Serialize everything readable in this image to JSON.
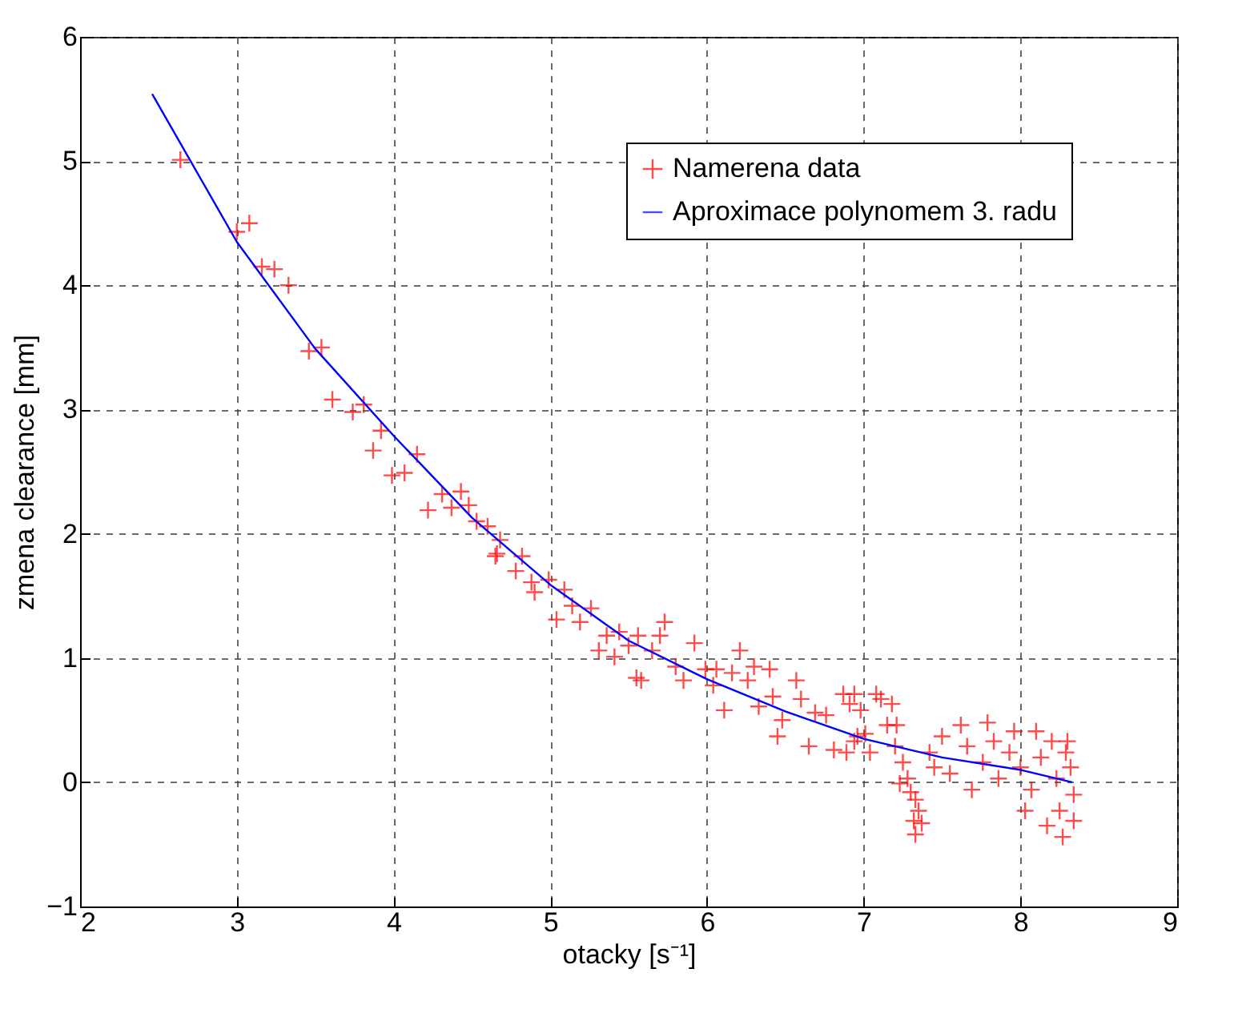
{
  "chart_data": {
    "type": "scatter",
    "xlabel": "otacky [s⁻¹]",
    "ylabel": "zmena clearance [mm]",
    "xlim": [
      2,
      9
    ],
    "ylim": [
      -1,
      6
    ],
    "xticks": [
      2,
      3,
      4,
      5,
      6,
      7,
      8,
      9
    ],
    "yticks": [
      -1,
      0,
      1,
      2,
      3,
      4,
      5,
      6
    ],
    "grid": true,
    "legend": "top right",
    "series": [
      {
        "name": "Namerena data",
        "color": "#ff0000",
        "marker": "cross",
        "x": [
          2.64,
          3.0,
          3.08,
          3.16,
          3.24,
          3.33,
          3.46,
          3.54,
          3.61,
          3.74,
          3.81,
          3.92,
          3.87,
          3.99,
          4.07,
          4.15,
          4.22,
          4.31,
          4.43,
          4.37,
          4.48,
          4.53,
          4.6,
          4.68,
          4.66,
          4.82,
          4.78,
          4.65,
          4.88,
          4.99,
          4.9,
          5.09,
          5.04,
          5.14,
          5.26,
          5.19,
          5.36,
          5.31,
          5.44,
          5.41,
          5.5,
          5.56,
          5.55,
          5.58,
          5.65,
          5.7,
          5.73,
          5.8,
          5.85,
          5.92,
          5.99,
          6.04,
          6.11,
          6.06,
          6.16,
          6.21,
          6.26,
          6.3,
          6.4,
          6.33,
          6.42,
          6.45,
          6.48,
          6.57,
          6.6,
          6.69,
          6.65,
          6.76,
          6.81,
          6.87,
          6.91,
          6.89,
          6.96,
          6.98,
          7.04,
          7.08,
          7.11,
          7.15,
          7.18,
          7.2,
          6.94,
          7.21,
          7.01,
          6.94,
          7.25,
          7.23,
          7.28,
          7.3,
          7.33,
          7.35,
          7.32,
          7.37,
          7.33,
          7.42,
          7.45,
          7.5,
          7.55,
          7.62,
          7.66,
          7.69,
          7.76,
          7.79,
          7.83,
          7.86,
          7.93,
          7.96,
          8.0,
          8.03,
          8.07,
          8.1,
          8.13,
          8.17,
          8.2,
          8.23,
          8.25,
          8.27,
          8.3,
          8.32,
          8.34,
          8.34,
          8.29
        ],
        "values": [
          5.01,
          4.43,
          4.5,
          4.15,
          4.13,
          4.0,
          3.47,
          3.5,
          3.08,
          2.98,
          3.04,
          2.83,
          2.67,
          2.47,
          2.49,
          2.64,
          2.19,
          2.32,
          2.34,
          2.21,
          2.23,
          2.1,
          2.06,
          1.95,
          1.84,
          1.82,
          1.7,
          1.82,
          1.61,
          1.63,
          1.53,
          1.55,
          1.31,
          1.42,
          1.4,
          1.29,
          1.18,
          1.06,
          1.21,
          1.01,
          1.1,
          1.18,
          0.84,
          0.82,
          1.06,
          1.18,
          1.29,
          0.93,
          0.82,
          1.12,
          0.91,
          0.78,
          0.58,
          0.91,
          0.88,
          1.06,
          0.82,
          0.93,
          0.91,
          0.61,
          0.69,
          0.37,
          0.5,
          0.82,
          0.67,
          0.56,
          0.29,
          0.54,
          0.26,
          0.71,
          0.63,
          0.24,
          0.37,
          0.58,
          0.24,
          0.71,
          0.67,
          0.46,
          0.63,
          0.29,
          0.71,
          0.46,
          0.39,
          0.33,
          0.16,
          -0.01,
          0.03,
          -0.08,
          -0.14,
          -0.23,
          -0.31,
          -0.33,
          -0.42,
          0.24,
          0.12,
          0.37,
          0.07,
          0.46,
          0.29,
          -0.06,
          0.16,
          0.48,
          0.33,
          0.03,
          0.24,
          0.41,
          0.12,
          -0.23,
          -0.06,
          0.41,
          0.2,
          -0.35,
          0.33,
          0.03,
          -0.23,
          -0.44,
          0.33,
          0.12,
          -0.1,
          -0.31,
          0.24
        ]
      },
      {
        "name": "Aproximace polynomem 3. radu",
        "color": "#0000ff",
        "type": "line",
        "marker": "none",
        "line_style": "solid",
        "x": [
          2.46,
          3,
          3.5,
          4,
          4.5,
          5,
          5.5,
          6,
          6.5,
          7,
          7.5,
          8,
          8.33
        ],
        "values": [
          5.54,
          4.35,
          3.49,
          2.79,
          2.13,
          1.59,
          1.14,
          0.83,
          0.57,
          0.35,
          0.2,
          0.1,
          0.0
        ]
      }
    ]
  }
}
